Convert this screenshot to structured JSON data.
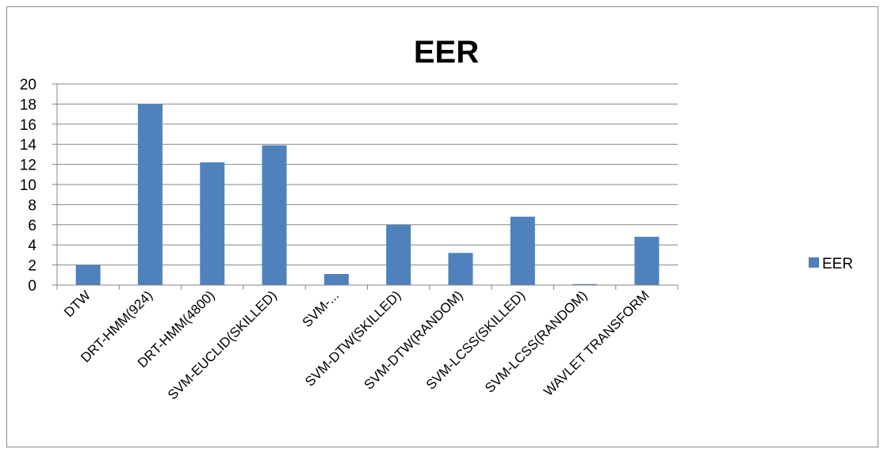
{
  "chart_data": {
    "type": "bar",
    "title": "EER",
    "xlabel": "",
    "ylabel": "",
    "categories": [
      "DTW",
      "DRT-HMM(924)",
      "DRT-HMM(4800)",
      "SVM-EUCLID(SKILLED)",
      "SVM-...",
      "SVM-DTW(SKILLED)",
      "SVM-DTW(RANDOM)",
      "SVM-LCSS(SKILLED)",
      "SVM-LCSS(RANDOM)",
      "WAVLET TRANSFORM"
    ],
    "series": [
      {
        "name": "EER",
        "values": [
          2,
          18,
          12.2,
          13.9,
          1.1,
          6,
          3.2,
          6.8,
          0.1,
          4.8
        ]
      }
    ],
    "ylim": [
      0,
      20
    ],
    "yticks": [
      "0",
      "2",
      "4",
      "6",
      "8",
      "10",
      "12",
      "14",
      "16",
      "18",
      "20"
    ],
    "grid": true,
    "legend_position": "right",
    "colors": {
      "bar": "#4f81bd",
      "grid": "#878787",
      "axis": "#868686"
    }
  }
}
